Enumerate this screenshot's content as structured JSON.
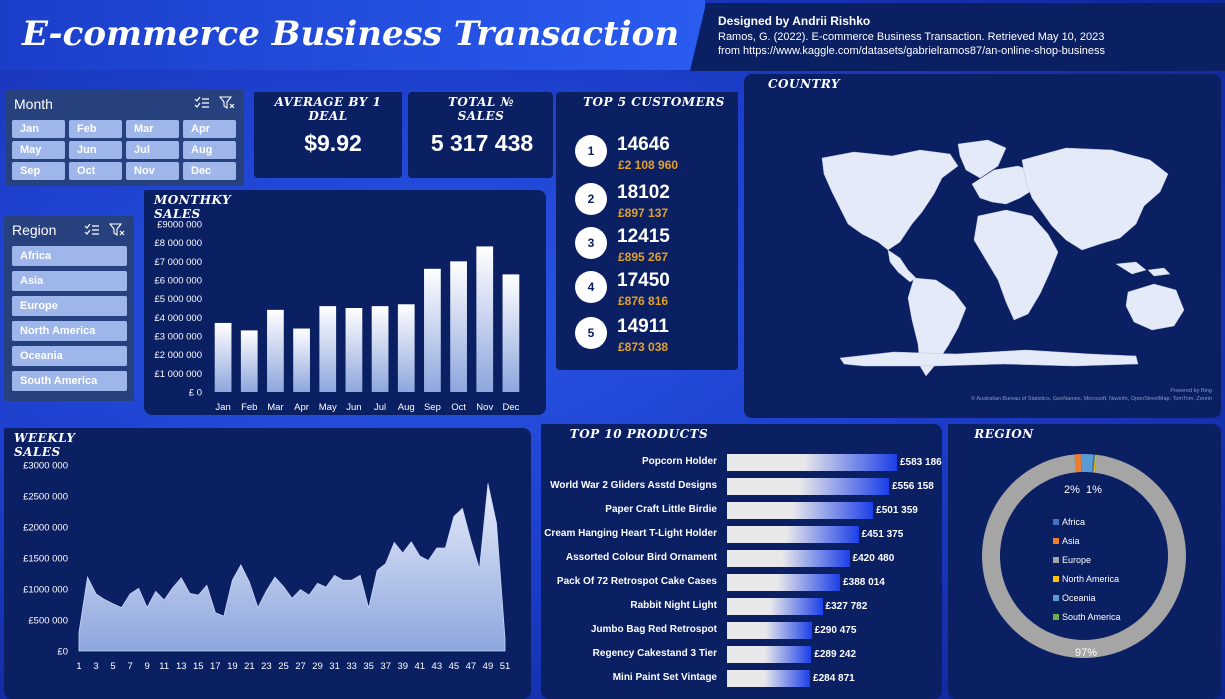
{
  "header": {
    "title": "E-commerce Business Transaction",
    "author": "Designed by Andrii Rishko",
    "citation_line1": "Ramos, G. (2022). E-commerce Business Transaction. Retrieved May 10, 2023",
    "citation_line2": "from https://www.kaggle.com/datasets/gabrielramos87/an-online-shop-business"
  },
  "month_slicer": {
    "title": "Month",
    "items": [
      "Jan",
      "Feb",
      "Mar",
      "Apr",
      "May",
      "Jun",
      "Jul",
      "Aug",
      "Sep",
      "Oct",
      "Nov",
      "Dec"
    ]
  },
  "region_slicer": {
    "title": "Region",
    "items": [
      "Africa",
      "Asia",
      "Europe",
      "North America",
      "Oceania",
      "South America"
    ]
  },
  "kpis": {
    "avg_label": "AVERAGE BY 1 DEAL",
    "avg_value": "$9.92",
    "total_label": "TOTAL № SALES",
    "total_value": "5 317 438"
  },
  "top_customers": {
    "title": "TOP 5 CUSTOMERS",
    "items": [
      {
        "rank": "1",
        "id": "14646",
        "amount": "£2 108 960"
      },
      {
        "rank": "2",
        "id": "18102",
        "amount": "£897 137"
      },
      {
        "rank": "3",
        "id": "12415",
        "amount": "£895 267"
      },
      {
        "rank": "4",
        "id": "17450",
        "amount": "£876 816"
      },
      {
        "rank": "5",
        "id": "14911",
        "amount": "£873 038"
      }
    ]
  },
  "country": {
    "title": "COUNTRY",
    "powered": "Powered by Bing",
    "attribution": "© Australian Bureau of Statistics, GeoNames, Microsoft, Navinfo, OpenStreetMap, TomTom, Zenrin"
  },
  "monthly_title": "MONTHKY SALES",
  "weekly_title": "WEEKLY SALES",
  "products_title": "TOP 10 PRODUCTS",
  "region_title": "REGION",
  "colors": {
    "panel": "#0b1f63",
    "background": "#1d3fcc",
    "bar_light": "#e8e8ea",
    "bar_blue": "#1c3fe8",
    "amount_gold": "#e0a12d",
    "donut_europe": "#a5a5a5",
    "donut_africa": "#4472c4",
    "donut_asia": "#ed7d31"
  },
  "chart_data": [
    {
      "id": "monthly",
      "type": "bar",
      "categories": [
        "Jan",
        "Feb",
        "Mar",
        "Apr",
        "May",
        "Jun",
        "Jul",
        "Aug",
        "Sep",
        "Oct",
        "Nov",
        "Dec"
      ],
      "values": [
        3700000,
        3300000,
        4400000,
        3400000,
        4600000,
        4500000,
        4600000,
        4700000,
        6600000,
        7000000,
        7800000,
        6300000
      ],
      "ylim": [
        0,
        9000000
      ],
      "yticks": [
        "£ 0",
        "£1 000 000",
        "£2 000 000",
        "£3 000 000",
        "£4 000 000",
        "£5 000 000",
        "£6 000 000",
        "£7 000 000",
        "£8 000 000",
        "£9000 000"
      ]
    },
    {
      "id": "weekly",
      "type": "area",
      "x": [
        1,
        2,
        3,
        4,
        5,
        6,
        7,
        8,
        9,
        10,
        11,
        12,
        13,
        14,
        15,
        16,
        17,
        18,
        19,
        20,
        21,
        22,
        23,
        24,
        25,
        26,
        27,
        28,
        29,
        30,
        31,
        32,
        33,
        34,
        35,
        36,
        37,
        38,
        39,
        40,
        41,
        42,
        43,
        44,
        45,
        46,
        47,
        48,
        49,
        50,
        51
      ],
      "values": [
        300000,
        1190000,
        920000,
        830000,
        760000,
        700000,
        920000,
        1010000,
        700000,
        960000,
        820000,
        1020000,
        1180000,
        930000,
        900000,
        1060000,
        620000,
        560000,
        1140000,
        1390000,
        1110000,
        700000,
        970000,
        1190000,
        1040000,
        850000,
        990000,
        900000,
        1090000,
        1030000,
        1220000,
        1140000,
        1140000,
        1220000,
        690000,
        1300000,
        1410000,
        1750000,
        1580000,
        1760000,
        1530000,
        1460000,
        1660000,
        1660000,
        2170000,
        2300000,
        1780000,
        1320000,
        2700000,
        2060000,
        200000
      ],
      "xticks": [
        "1",
        "3",
        "5",
        "7",
        "9",
        "11",
        "13",
        "15",
        "17",
        "19",
        "21",
        "23",
        "25",
        "27",
        "29",
        "31",
        "33",
        "35",
        "37",
        "39",
        "41",
        "43",
        "45",
        "47",
        "49",
        "51"
      ],
      "ylim": [
        0,
        3000000
      ],
      "yticks": [
        "£0",
        "£500 000",
        "£1000 000",
        "£1500 000",
        "£2000 000",
        "£2500 000",
        "£3000 000"
      ]
    },
    {
      "id": "products",
      "type": "bar",
      "categories": [
        "Popcorn Holder",
        "World War 2 Gliders Asstd Designs",
        "Paper Craft Little Birdie",
        "Cream Hanging Heart T-Light Holder",
        "Assorted Colour Bird Ornament",
        "Pack Of 72 Retrospot Cake Cases",
        "Rabbit Night Light",
        "Jumbo Bag Red Retrospot",
        "Regency Cakestand 3 Tier",
        "Mini Paint Set Vintage"
      ],
      "values": [
        583186,
        556158,
        501359,
        451375,
        420480,
        388014,
        327782,
        290475,
        289242,
        284871
      ],
      "value_labels": [
        "£583 186",
        "£556 158",
        "£501 359",
        "£451 375",
        "£420 480",
        "£388 014",
        "£327 782",
        "£290 475",
        "£289 242",
        "£284 871"
      ]
    },
    {
      "id": "region",
      "type": "pie",
      "labels": [
        "Africa",
        "Asia",
        "Europe",
        "North America",
        "Oceania",
        "South America"
      ],
      "values": [
        0.2,
        1,
        97,
        0.2,
        2,
        0.1
      ],
      "label_texts": [
        "2%",
        "1%",
        "97%"
      ],
      "colors": [
        "#4472c4",
        "#ed7d31",
        "#a5a5a5",
        "#ffc000",
        "#5b9bd5",
        "#70ad47"
      ]
    }
  ]
}
